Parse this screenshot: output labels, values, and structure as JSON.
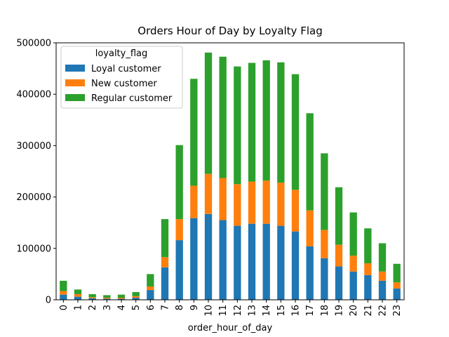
{
  "chart_data": {
    "type": "bar",
    "stacked": true,
    "title": "Orders Hour of Day by Loyalty Flag",
    "xlabel": "order_hour_of_day",
    "ylabel": "",
    "ylim": [
      0,
      500000
    ],
    "yticks": [
      0,
      100000,
      200000,
      300000,
      400000,
      500000
    ],
    "grid": false,
    "legend": {
      "title": "loyalty_flag",
      "position": "upper-left"
    },
    "categories": [
      "0",
      "1",
      "2",
      "3",
      "4",
      "5",
      "6",
      "7",
      "8",
      "9",
      "10",
      "11",
      "12",
      "13",
      "14",
      "15",
      "16",
      "17",
      "18",
      "19",
      "20",
      "21",
      "22",
      "23"
    ],
    "series": [
      {
        "name": "Loyal customer",
        "color": "#1f77b4",
        "values": [
          10000,
          6000,
          3000,
          2000,
          2000,
          4000,
          19000,
          63000,
          116000,
          159000,
          167000,
          155000,
          144000,
          148000,
          148000,
          144000,
          133000,
          104000,
          81000,
          65000,
          55000,
          48000,
          37000,
          22000
        ]
      },
      {
        "name": "New customer",
        "color": "#ff7f0e",
        "values": [
          7000,
          5000,
          2000,
          2000,
          2000,
          3000,
          7000,
          20000,
          41000,
          63000,
          78000,
          82000,
          81000,
          82000,
          84000,
          84000,
          81000,
          70000,
          55000,
          42000,
          31000,
          23000,
          18000,
          12000
        ]
      },
      {
        "name": "Regular customer",
        "color": "#2ca02c",
        "values": [
          20000,
          9000,
          6000,
          5000,
          6000,
          8000,
          24000,
          74000,
          144000,
          208000,
          236000,
          236000,
          229000,
          231000,
          234000,
          234000,
          225000,
          189000,
          149000,
          112000,
          84000,
          68000,
          55000,
          36000
        ]
      }
    ]
  }
}
